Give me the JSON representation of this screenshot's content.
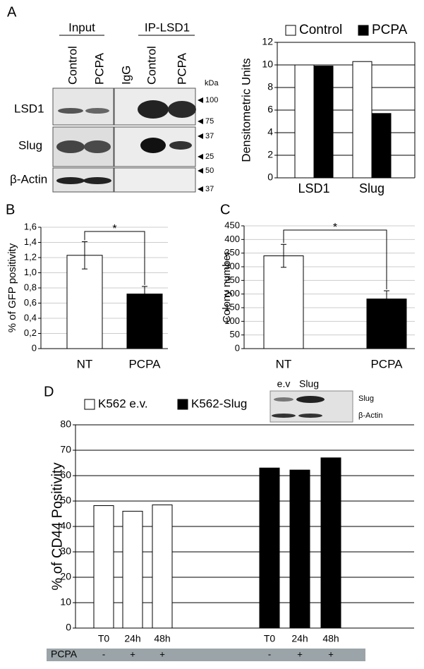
{
  "panel_labels": [
    "A",
    "B",
    "C",
    "D"
  ],
  "blot_a": {
    "groups": [
      "Input",
      "IP-LSD1"
    ],
    "lanes": [
      "Control",
      "PCPA",
      "IgG",
      "Control",
      "PCPA"
    ],
    "rows": [
      "LSD1",
      "Slug",
      "β-Actin"
    ],
    "unit": "kDa",
    "markers": [
      "100",
      "75",
      "37",
      "25",
      "50",
      "37"
    ]
  },
  "blot_d": {
    "lanes": [
      "e.v",
      "Slug"
    ],
    "rows": [
      "Slug",
      "β-Actin"
    ]
  },
  "chart_data": [
    {
      "type": "bar",
      "ylabel": "Densitometric Units",
      "categories": [
        "LSD1",
        "Slug"
      ],
      "series": [
        {
          "name": "Control",
          "color": "#ffffff",
          "values": [
            10,
            10.3
          ]
        },
        {
          "name": "PCPA",
          "color": "#000000",
          "values": [
            9.9,
            5.7
          ]
        }
      ],
      "ylim": [
        0,
        12
      ],
      "yticks": [
        0,
        2,
        4,
        6,
        8,
        10,
        12
      ],
      "grid": true,
      "legend": "top"
    },
    {
      "type": "bar",
      "ylabel": "% of GFP positivity",
      "categories": [
        "NT",
        "PCPA"
      ],
      "values": [
        1.23,
        0.72
      ],
      "errors": [
        0.18,
        0.1
      ],
      "colors": [
        "#ffffff",
        "#000000"
      ],
      "ylim": [
        0,
        1.6
      ],
      "yticks": [
        0,
        {
          "value": 0.2,
          "label": "0,2"
        },
        {
          "value": 0.4,
          "label": "0,4"
        },
        {
          "value": 0.6,
          "label": "0,6"
        },
        {
          "value": 0.8,
          "label": "0,8"
        },
        {
          "value": 1.0,
          "label": "1,0"
        },
        {
          "value": 1.2,
          "label": "1,2"
        },
        {
          "value": 1.4,
          "label": "1,4"
        },
        {
          "value": 1.6,
          "label": "1,6"
        }
      ],
      "grid": true,
      "annotation": "*"
    },
    {
      "type": "bar",
      "ylabel": "Colony number",
      "categories": [
        "NT",
        "PCPA"
      ],
      "values": [
        340,
        182
      ],
      "errors": [
        42,
        30
      ],
      "colors": [
        "#ffffff",
        "#000000"
      ],
      "ylim": [
        0,
        450
      ],
      "yticks": [
        0,
        50,
        100,
        150,
        200,
        250,
        300,
        350,
        400,
        450
      ],
      "grid": true,
      "annotation": "*"
    },
    {
      "type": "bar",
      "ylabel": "% of CD44 Positivity",
      "categories": [
        "T0",
        "24h",
        "48h",
        "T0",
        "24h",
        "48h"
      ],
      "series": [
        {
          "name": "K562 e.v.",
          "color": "#ffffff",
          "values": [
            48.2,
            46,
            48.5,
            null,
            null,
            null
          ]
        },
        {
          "name": "K562-Slug",
          "color": "#000000",
          "values": [
            null,
            null,
            null,
            63,
            62.2,
            67
          ]
        }
      ],
      "ylim": [
        0,
        80
      ],
      "yticks": [
        0,
        10,
        20,
        30,
        40,
        50,
        60,
        70,
        80
      ],
      "grid": true,
      "legend": "top",
      "treatment": {
        "label": "PCPA",
        "values": [
          "-",
          "+",
          "+",
          "-",
          "+",
          "+"
        ]
      }
    }
  ]
}
